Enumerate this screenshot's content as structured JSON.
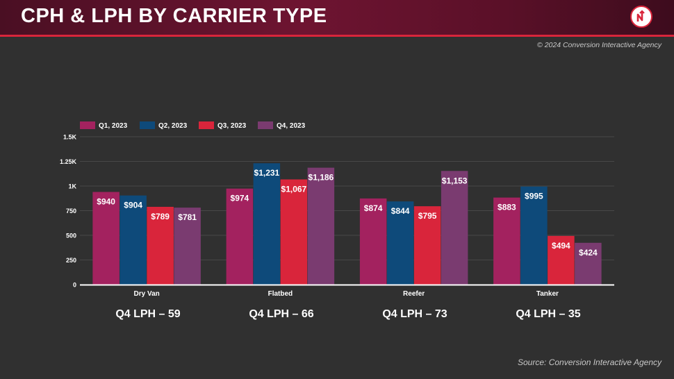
{
  "header": {
    "title": "CPH & LPH BY CARRIER TYPE",
    "logo_icon": "agency-logo-icon"
  },
  "copyright": "© 2024 Conversion Interactive Agency",
  "source": "Source: Conversion Interactive Agency",
  "lph": [
    {
      "label": "Q4 LPH – 59"
    },
    {
      "label": "Q4 LPH – 66"
    },
    {
      "label": "Q4 LPH – 73"
    },
    {
      "label": "Q4 LPH – 35"
    }
  ],
  "chart_data": {
    "type": "bar",
    "categories": [
      "Dry Van",
      "Flatbed",
      "Reefer",
      "Tanker"
    ],
    "series": [
      {
        "name": "Q1, 2023",
        "color": "#a3225f",
        "values": [
          940,
          974,
          874,
          883
        ],
        "labels": [
          "$940",
          "$974",
          "$874",
          "$883"
        ]
      },
      {
        "name": "Q2, 2023",
        "color": "#0e4a7a",
        "values": [
          904,
          1231,
          844,
          995
        ],
        "labels": [
          "$904",
          "$1,231",
          "$844",
          "$995"
        ]
      },
      {
        "name": "Q3, 2023",
        "color": "#d9253b",
        "values": [
          789,
          1067,
          795,
          494
        ],
        "labels": [
          "$789",
          "$1,067",
          "$795",
          "$494"
        ]
      },
      {
        "name": "Q4, 2023",
        "color": "#7a3b70",
        "values": [
          781,
          1186,
          1153,
          424
        ],
        "labels": [
          "$781",
          "$1,186",
          "$1,153",
          "$424"
        ]
      }
    ],
    "yticks": [
      {
        "value": 0,
        "label": "0"
      },
      {
        "value": 250,
        "label": "250"
      },
      {
        "value": 500,
        "label": "500"
      },
      {
        "value": 750,
        "label": "750"
      },
      {
        "value": 1000,
        "label": "1K"
      },
      {
        "value": 1250,
        "label": "1.25K"
      },
      {
        "value": 1500,
        "label": "1.5K"
      }
    ],
    "ylim": [
      0,
      1500
    ],
    "grid": true,
    "legend_position": "top-left"
  }
}
